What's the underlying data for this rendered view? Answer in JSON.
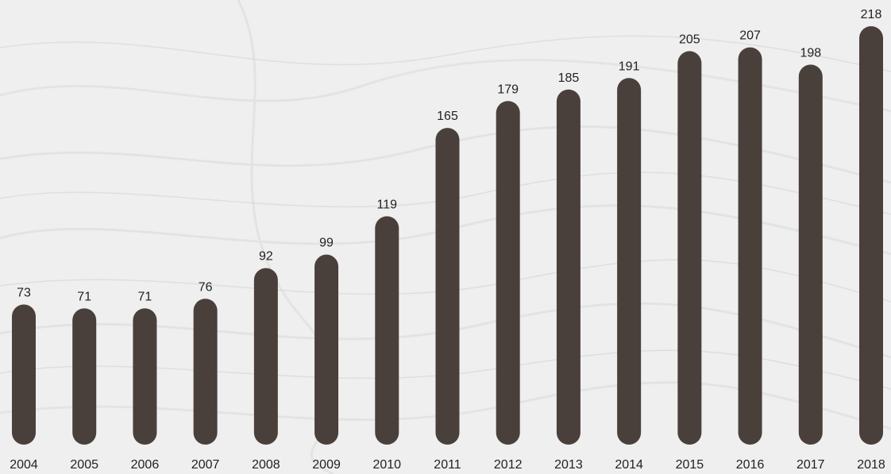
{
  "colors": {
    "background": "#efefef",
    "bar": "#4a403b",
    "text": "#222222",
    "texture": "#d9d9d9"
  },
  "chart_data": {
    "type": "bar",
    "bar_style": "rounded-pill",
    "title": "",
    "xlabel": "",
    "ylabel": "",
    "grid": false,
    "legend": "none",
    "ylim": [
      0,
      218
    ],
    "categories": [
      "2004",
      "2005",
      "2006",
      "2007",
      "2008",
      "2009",
      "2010",
      "2011",
      "2012",
      "2013",
      "2014",
      "2015",
      "2016",
      "2017",
      "2018"
    ],
    "values": [
      73,
      71,
      71,
      76,
      92,
      99,
      119,
      165,
      179,
      185,
      191,
      205,
      207,
      198,
      218
    ],
    "data_labels": [
      "73",
      "71",
      "71",
      "76",
      "92",
      "99",
      "119",
      "165",
      "179",
      "185",
      "191",
      "205",
      "207",
      "198",
      "218"
    ]
  }
}
